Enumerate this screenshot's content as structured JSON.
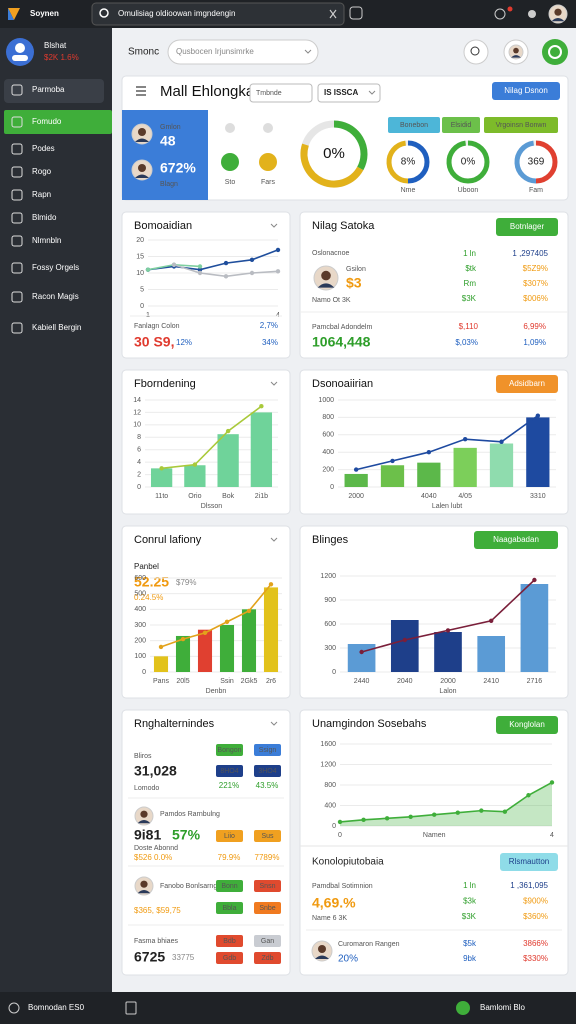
{
  "topbar": {
    "brand": "Soynen",
    "search": "Omulisiag oldioowan imgndengin"
  },
  "sidebar": {
    "user": "Blshat",
    "stat": "$2K 1.6%",
    "nav": [
      "Parmoba",
      "Fomudo",
      "Podes",
      "Rogo",
      "Rapn",
      "Blmido",
      "Nlmnbln",
      "Fossy Orgels",
      "Racon Magis",
      "Kabiell Bergin"
    ]
  },
  "header": {
    "title": "Smonc",
    "search": "Qusbocen Irjunsimrke"
  },
  "overview": {
    "title": "Mall Ehlongka",
    "input": "Tmbnde",
    "select": "IS ISSCA",
    "button": "Nilag Dsnon",
    "profile": [
      {
        "label": "Gmlon",
        "value": "48"
      },
      {
        "label": "Blagn",
        "value": "672%"
      }
    ],
    "toggles": [
      "Sto",
      "Fars"
    ],
    "gauge": "0%",
    "tags": [
      "Bonebon",
      "Elsidid",
      "Vrgoinsn Bonwn"
    ],
    "rings": [
      {
        "value": "8%",
        "label": "Nme"
      },
      {
        "value": "0%",
        "label": "Uboon"
      },
      {
        "value": "369",
        "label": "Fam"
      }
    ]
  },
  "line_card": {
    "footer_label": "Fanlagn Colon",
    "footer_stat": "2,7%",
    "big": "30 S9,",
    "big_pct": "12%",
    "side_pct": "34%"
  },
  "stats_card": {
    "title": "Nilag Satoka",
    "button": "Botnlager",
    "sub": "Oslonacnoe",
    "person": "Gsilon",
    "big": "$3",
    "caption": "Namo Ot 3K",
    "rows": [
      [
        "1 ln",
        "1 ,297405"
      ],
      [
        "$tk",
        "$5Z9%"
      ],
      [
        "Rm",
        "$307%"
      ],
      [
        "$3K",
        "$006%"
      ]
    ],
    "footer": [
      {
        "label": "Pamcbal Adondelm",
        "value": "1064,448"
      },
      {
        "label": "$,110",
        "value": "$,03%"
      },
      {
        "label": "6,99%",
        "value": "1,09%"
      }
    ]
  },
  "flow_card": {
    "label": "Panbel",
    "value": "52.25",
    "pct": "$79%",
    "sub": "0.24.5%"
  },
  "list_card": {
    "title": "Rnghalternindes",
    "items": [
      {
        "name": "Bliros",
        "value": "31,028",
        "sub": "Lomodo",
        "pills": [
          {
            "text": "Bongon",
            "color": "#3fae3a"
          },
          {
            "text": "Ssign",
            "color": "#3b7dd8"
          },
          {
            "text": "8HO4",
            "color": "#1e3f8a"
          },
          {
            "text": "3HO4",
            "color": "#1e3f8a"
          }
        ],
        "stats": [
          "221%",
          "43.5%"
        ]
      },
      {
        "name": "Pamdos Rarnbulng",
        "value": "9i81",
        "pct": "57%",
        "sub": "Doste Abonnd",
        "extra": "$526 0.0%",
        "pills": [
          {
            "text": "Liio",
            "color": "#f0a020"
          },
          {
            "text": "Sus",
            "color": "#f0a020"
          }
        ],
        "stats": [
          "79.9%",
          "7789%"
        ]
      },
      {
        "name": "Fanobo Bonlsarng",
        "extra": "$365, $59,75",
        "pills": [
          {
            "text": "Bonn",
            "color": "#3fae3a"
          },
          {
            "text": "Snsn",
            "color": "#e04a2e"
          },
          {
            "text": "Bbla",
            "color": "#3fae3a"
          },
          {
            "text": "Snbe",
            "color": "#f07a20"
          }
        ]
      },
      {
        "name": "Fasma bhiaes",
        "value": "6725",
        "pct": "33775",
        "pills": [
          {
            "text": "Bdb",
            "color": "#e04a2e"
          },
          {
            "text": "Gan",
            "color": "#c9ccd2"
          },
          {
            "text": "Gdb",
            "color": "#e04a2e"
          },
          {
            "text": "Zdb",
            "color": "#e04a2e"
          }
        ]
      }
    ]
  },
  "report_card": {
    "title": "Konolopiutobaia",
    "button": "Rlsmautton",
    "label": "Pamdbal Sotimnion",
    "big": "4,69.%",
    "caption": "Name 6 3K",
    "rows": [
      [
        "1 ln",
        "1 ,361,095"
      ],
      [
        "$3k",
        "$900%"
      ],
      [
        "$3K",
        "$360%"
      ]
    ],
    "person": "Curomaron Rangen",
    "person_pct": "20%",
    "person_rows": [
      [
        "$5k",
        "3866%"
      ],
      [
        "9bk",
        "$330%"
      ]
    ]
  },
  "footer": {
    "left": "Bomnodan ES0",
    "right": "Bamlomi Blo"
  },
  "chart_data": [
    {
      "type": "line",
      "title": "Bomoaidian",
      "categories": [
        "1",
        null,
        null,
        null,
        null,
        "4"
      ],
      "ylim": [
        0,
        20
      ],
      "yticks": [
        0,
        5,
        10,
        15,
        20
      ],
      "series": [
        {
          "color": "#1f4e9c",
          "values": [
            11,
            12,
            11,
            13,
            14,
            17
          ]
        },
        {
          "color": "#7ecfa0",
          "values": [
            11,
            12.5,
            12,
            null,
            null,
            null
          ]
        },
        {
          "color": "#b9bcc2",
          "values": [
            null,
            12.5,
            10,
            9,
            10,
            10.5
          ]
        }
      ]
    },
    {
      "type": "combo",
      "title": "Fborndening",
      "xlabel": "Dlsson",
      "categories": [
        "11to",
        "Orio",
        "Bok",
        "2i1b"
      ],
      "ylim": [
        0,
        14
      ],
      "yticks": [
        0,
        2,
        4,
        6,
        8,
        10,
        12,
        14
      ],
      "series": [
        {
          "mark": "bar",
          "color": "#6fd39a",
          "values": [
            3,
            3.5,
            8.5,
            12
          ]
        },
        {
          "mark": "line",
          "color": "#a9c93a",
          "values": [
            3,
            3.6,
            9,
            13
          ]
        }
      ]
    },
    {
      "type": "combo",
      "title": "Dsonoaiirian",
      "button": "Adsidbarn",
      "xlabel": "Lalen lubt",
      "categories": [
        "2000",
        null,
        "4040",
        "4/05",
        null,
        "3310"
      ],
      "ylim": [
        0,
        1000
      ],
      "yticks": [
        0,
        200,
        400,
        600,
        800,
        1000
      ],
      "series": [
        {
          "mark": "bar",
          "colors": [
            "#5cb84a",
            "#6cc04a",
            "#5cb84a",
            "#7ccf5a",
            "#8fdcae",
            "#1e4aa0"
          ],
          "values": [
            150,
            250,
            280,
            450,
            500,
            800
          ]
        },
        {
          "mark": "line",
          "color": "#1e4aa0",
          "values": [
            200,
            300,
            400,
            550,
            520,
            820
          ]
        }
      ]
    },
    {
      "type": "combo",
      "title": "Conrul lafiony",
      "xlabel": "Denbn",
      "categories": [
        "Pans",
        "20l5",
        null,
        "Ssin",
        "2Gk5",
        "2r6"
      ],
      "ylim": [
        0,
        600
      ],
      "yticks": [
        0,
        100,
        200,
        300,
        400,
        500,
        600
      ],
      "series": [
        {
          "mark": "bar",
          "colors": [
            "#e2c21b",
            "#3fae3a",
            "#e04030",
            "#3fae3a",
            "#3fae3a",
            "#e2c21b"
          ],
          "values": [
            100,
            230,
            270,
            300,
            400,
            540
          ]
        },
        {
          "mark": "line",
          "color": "#e2a21b",
          "values": [
            160,
            210,
            250,
            320,
            390,
            560
          ]
        }
      ]
    },
    {
      "type": "combo",
      "title": "Blinges",
      "button": "Naagabadan",
      "xlabel": "Lalon",
      "categories": [
        "2440",
        "2040",
        "2000",
        "2410",
        "2716"
      ],
      "ylim": [
        0,
        1200
      ],
      "yticks": [
        0,
        300,
        600,
        900,
        1200
      ],
      "series": [
        {
          "mark": "bar",
          "colors": [
            "#5b9bd5",
            "#1e3f8a",
            "#1e3f8a",
            "#5b9bd5",
            "#5b9bd5"
          ],
          "values": [
            350,
            650,
            500,
            450,
            1100
          ]
        },
        {
          "mark": "line",
          "color": "#7a1f3a",
          "values": [
            250,
            400,
            520,
            640,
            1150
          ]
        }
      ]
    },
    {
      "type": "area",
      "title": "Unamgindon Sosebahs",
      "button": "Konglolan",
      "categories": [
        "0",
        null,
        null,
        null,
        "Namen",
        null,
        null,
        null,
        null,
        "4"
      ],
      "ylim": [
        0,
        1600
      ],
      "yticks": [
        0,
        400,
        800,
        1200,
        1600
      ],
      "color": "#3fae3a",
      "values": [
        80,
        120,
        150,
        180,
        220,
        260,
        300,
        280,
        600,
        850
      ]
    }
  ]
}
